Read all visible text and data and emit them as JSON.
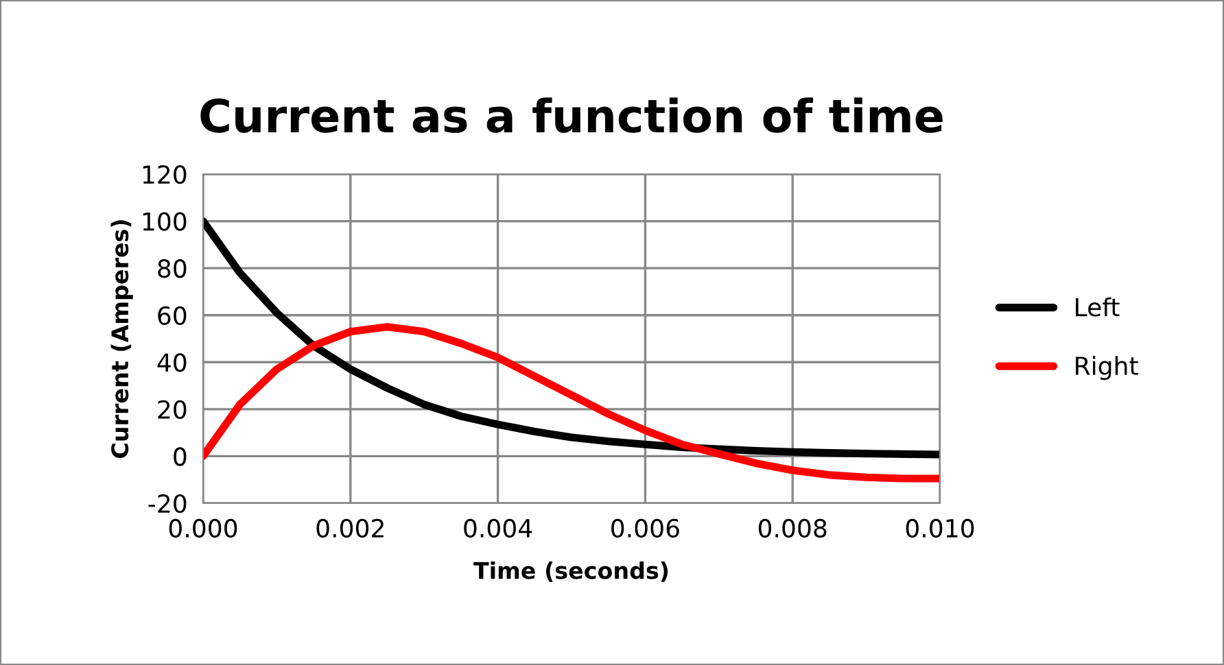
{
  "chart_data": {
    "type": "line",
    "title": "Current as a function of time",
    "xlabel": "Time (seconds)",
    "ylabel": "Current (Amperes)",
    "x": [
      0,
      0.0005,
      0.001,
      0.0015,
      0.002,
      0.0025,
      0.003,
      0.0035,
      0.004,
      0.0045,
      0.005,
      0.0055,
      0.006,
      0.0065,
      0.007,
      0.0075,
      0.008,
      0.0085,
      0.009,
      0.0095,
      0.01
    ],
    "series": [
      {
        "name": "Left",
        "color": "#000000",
        "values": [
          100,
          78,
          61,
          47,
          37,
          29,
          22,
          17,
          13.5,
          10.5,
          8,
          6.3,
          5,
          3.8,
          3,
          2.3,
          1.8,
          1.4,
          1.1,
          0.9,
          0.7
        ]
      },
      {
        "name": "Right",
        "color": "#ff0000",
        "values": [
          0,
          22,
          37,
          47,
          53,
          55,
          53,
          48,
          42,
          34,
          26,
          18,
          11,
          5,
          1,
          -3,
          -6,
          -8,
          -9,
          -9.5,
          -9.5
        ]
      }
    ],
    "xlim": [
      0,
      0.01
    ],
    "xticks": [
      {
        "value": 0,
        "label": "0.000"
      },
      {
        "value": 0.002,
        "label": "0.002"
      },
      {
        "value": 0.004,
        "label": "0.004"
      },
      {
        "value": 0.006,
        "label": "0.006"
      },
      {
        "value": 0.008,
        "label": "0.008"
      },
      {
        "value": 0.01,
        "label": "0.010"
      }
    ],
    "ylim": [
      -20,
      120
    ],
    "yticks": [
      -20,
      0,
      20,
      40,
      60,
      80,
      100,
      120
    ],
    "grid": true,
    "legend": "right",
    "marker": "none",
    "line_style": "solid"
  }
}
